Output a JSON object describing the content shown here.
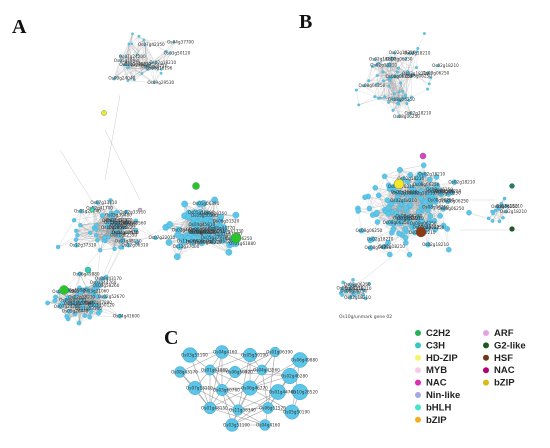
{
  "panels": {
    "a": {
      "letter": "A"
    },
    "b": {
      "letter": "B",
      "note": "Os10g/unmark gene 02"
    },
    "c": {
      "letter": "C"
    }
  },
  "colors": {
    "default_node": "#5bc6e8",
    "edge": "#9a9a9a",
    "hub_green": "#2cc42c",
    "hub_yellow": "#f2e82a",
    "hub_brown": "#8b3a12",
    "hub_magenta": "#e040c8",
    "hub_darkgreen": "#1d5a1d"
  },
  "legend": [
    {
      "label": "C2H2",
      "color": "#27b05a",
      "icon": "dot"
    },
    {
      "label": "ARF",
      "color": "#e6a3e3",
      "icon": "dot"
    },
    {
      "label": "C3H",
      "color": "#35c9c1",
      "icon": "dot"
    },
    {
      "label": "G2-like",
      "color": "#1d5a1d",
      "icon": "dot"
    },
    {
      "label": "HD-ZIP",
      "color": "#f4f56a",
      "icon": "dot"
    },
    {
      "label": "HSF",
      "color": "#6b3a13",
      "icon": "dot"
    },
    {
      "label": "MYB",
      "color": "#f7cbe6",
      "icon": "dot"
    },
    {
      "label": "NAC",
      "color": "#e12bb0",
      "icon": "dot"
    },
    {
      "label": "NAC",
      "color": "#b3006b",
      "icon": "dot"
    },
    {
      "label": "bZIP",
      "color": "#d6bd18",
      "icon": "dot"
    },
    {
      "label": "Nin-like",
      "color": "#a3a9e0",
      "icon": "dot"
    },
    {
      "label": "bHLH",
      "color": "#3fe3cf",
      "icon": "dot"
    },
    {
      "label": "bZIP",
      "color": "#f0b020",
      "icon": "dot"
    }
  ],
  "panel_c_labels": [
    "Os03g51100",
    "Os04g4160",
    "Os05g50190",
    "Os01g06390",
    "Os06g49880",
    "Os08g43170",
    "Os01g61880",
    "Os06g50920",
    "Os04g43560",
    "Os02g46280",
    "Os07g13110",
    "Os03g60760",
    "Os06g46770",
    "Os01g44760",
    "Os10g28520",
    "Os01g48150",
    "Os11g38340",
    "Os06g51520"
  ],
  "panel_a_labels": [
    "Os02g18210",
    "Os11g08000",
    "Os12g37310",
    "Os07g24200",
    "Os01g66020",
    "Os07g22010",
    "Os03g50120",
    "Os05g16090",
    "Os04g40550",
    "Os04g37700",
    "Os03g37660",
    "Os01g50970",
    "Os10g40230",
    "Os06g02030",
    "Os11g37960",
    "Os02g08710",
    "Os09g28760",
    "Os01g22350",
    "Os05g18980",
    "Os12g37000",
    "Os02g07920",
    "Os08g16196",
    "Os05g37930",
    "Os01g20040",
    "Os09g24040",
    "Os03g58260",
    "Os02g46690",
    "Os07g37300",
    "Os01g44860",
    "Os04g45810",
    "Os09g29530",
    "Os06g45230",
    "Os01g61340",
    "Os07g42350",
    "Os11g03300",
    "Os08g06250",
    "Os12g06310",
    "Os05g26440",
    "Os10g10270",
    "Os02g33110",
    "Os03g21060",
    "Os01g06390",
    "Os04g43560",
    "Os06g50920",
    "Os02g46280",
    "Os07g13110",
    "Os03g60760",
    "Os06g46770",
    "Os09g20610",
    "Os08g43170",
    "Os01g61880",
    "Os10g28520",
    "Os11g38340",
    "Os05g50190",
    "Os12g41700",
    "Os06g49880",
    "Os02g36220",
    "Os03g51100",
    "Os04g41600",
    "Os08g44770",
    "Os01g48150",
    "Os07g47890",
    "Os09g36220",
    "Os05g39480",
    "Os03g44760",
    "Os06g51520",
    "Os12g29330",
    "Os02g52670",
    "Os10g41330",
    "Os04g46220"
  ]
}
